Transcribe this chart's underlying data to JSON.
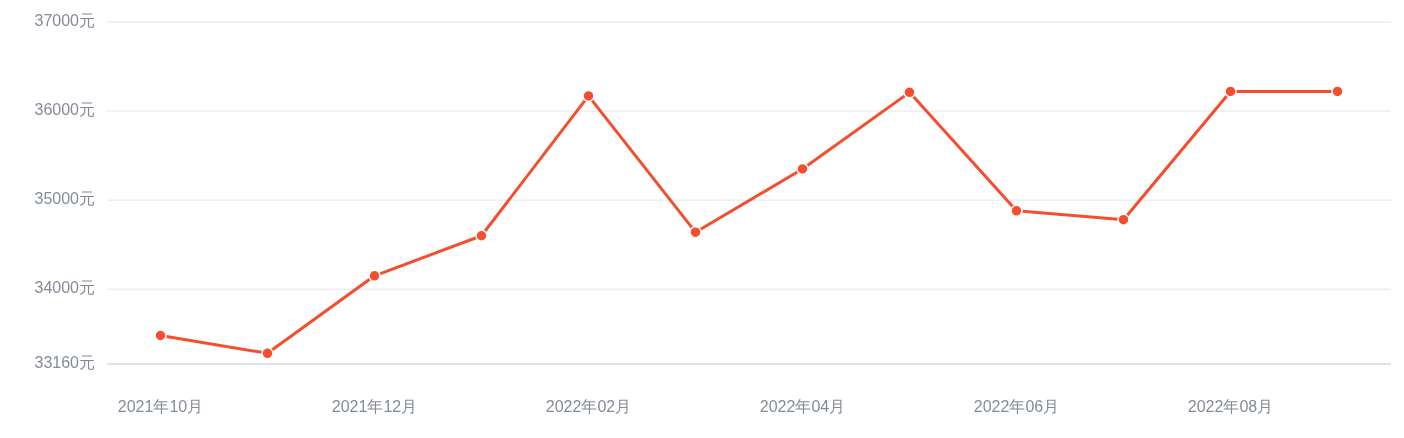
{
  "chart_data": {
    "type": "line",
    "categories": [
      "2021年10月",
      null,
      "2021年12月",
      null,
      "2022年02月",
      null,
      "2022年04月",
      null,
      "2022年06月",
      null,
      "2022年08月",
      null
    ],
    "series": [
      {
        "color": "#f44e2e",
        "values": [
          33480,
          33280,
          34150,
          34600,
          36170,
          34640,
          35350,
          36210,
          34880,
          34780,
          36220,
          36220
        ]
      }
    ],
    "ylim": [
      33160,
      37000
    ],
    "yticks": [
      {
        "value": 33160,
        "label": "33160元"
      },
      {
        "value": 34000,
        "label": "34000元"
      },
      {
        "value": 35000,
        "label": "35000元"
      },
      {
        "value": 36000,
        "label": "36000元"
      },
      {
        "value": 37000,
        "label": "37000元"
      }
    ],
    "grid": "y",
    "marker": "circle",
    "line_style": "solid"
  }
}
